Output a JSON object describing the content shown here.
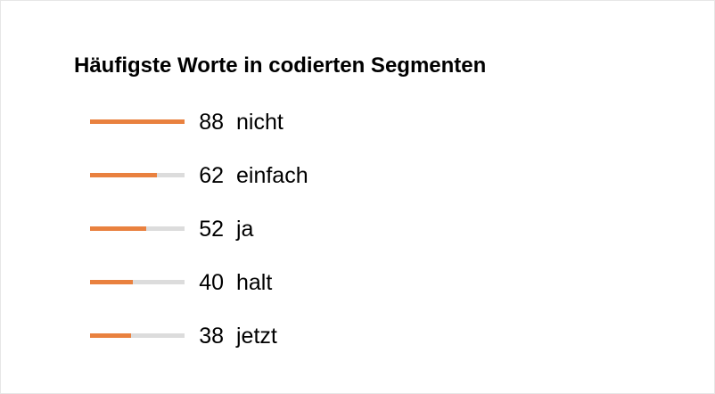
{
  "widget": {
    "title": "Häufigste Worte in codierten Segmenten",
    "accent_color": "#e9813f",
    "track_color": "#dcdcdc",
    "max_count": 88,
    "items": [
      {
        "count": "88",
        "word": "nicht",
        "value": 88
      },
      {
        "count": "62",
        "word": "einfach",
        "value": 62
      },
      {
        "count": "52",
        "word": "ja",
        "value": 52
      },
      {
        "count": "40",
        "word": "halt",
        "value": 40
      },
      {
        "count": "38",
        "word": "jetzt",
        "value": 38
      }
    ]
  }
}
